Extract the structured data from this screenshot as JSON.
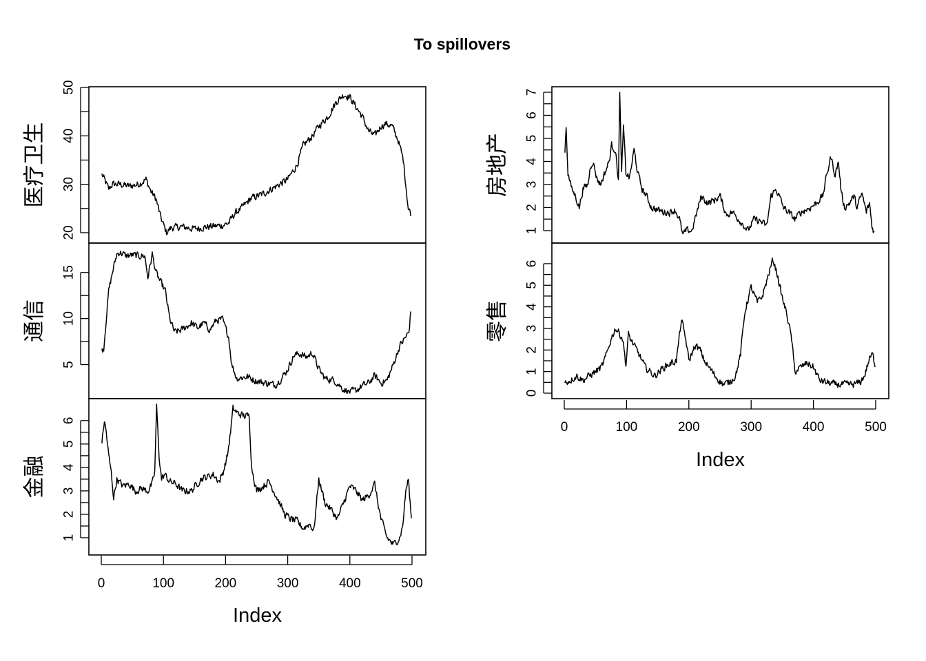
{
  "chart_data": {
    "type": "line",
    "title": "To spillovers",
    "xlabel": "Index",
    "xlim": [
      0,
      500
    ],
    "xticks": [
      0,
      100,
      200,
      300,
      400,
      500
    ],
    "panels": [
      {
        "name": "医疗卫生",
        "column": "left",
        "ylim": [
          19,
          49
        ],
        "yticks": [
          20,
          30,
          40,
          50
        ],
        "knots": [
          [
            1,
            32
          ],
          [
            5,
            31
          ],
          [
            12,
            29
          ],
          [
            18,
            30
          ],
          [
            30,
            30
          ],
          [
            45,
            29.6
          ],
          [
            60,
            30
          ],
          [
            72,
            31
          ],
          [
            80,
            28.5
          ],
          [
            88,
            27
          ],
          [
            96,
            23
          ],
          [
            105,
            20
          ],
          [
            112,
            21
          ],
          [
            130,
            21.2
          ],
          [
            150,
            20.8
          ],
          [
            170,
            21.2
          ],
          [
            195,
            21.5
          ],
          [
            205,
            22
          ],
          [
            215,
            24
          ],
          [
            225,
            25
          ],
          [
            240,
            27
          ],
          [
            260,
            28
          ],
          [
            280,
            29.5
          ],
          [
            300,
            31
          ],
          [
            315,
            34
          ],
          [
            325,
            38
          ],
          [
            340,
            40
          ],
          [
            350,
            42
          ],
          [
            365,
            44
          ],
          [
            378,
            47
          ],
          [
            390,
            48.5
          ],
          [
            400,
            48
          ],
          [
            410,
            46
          ],
          [
            420,
            44
          ],
          [
            430,
            41
          ],
          [
            440,
            40
          ],
          [
            450,
            42
          ],
          [
            458,
            42.5
          ],
          [
            468,
            42
          ],
          [
            478,
            39
          ],
          [
            486,
            35
          ],
          [
            490,
            30
          ],
          [
            494,
            25
          ],
          [
            498,
            24
          ]
        ]
      },
      {
        "name": "通信",
        "column": "left",
        "ylim": [
          1.9,
          17.6
        ],
        "yticks": [
          5,
          10,
          15
        ],
        "knots": [
          [
            1,
            6.5
          ],
          [
            4,
            6.8
          ],
          [
            8,
            10
          ],
          [
            12,
            13
          ],
          [
            18,
            15
          ],
          [
            25,
            17
          ],
          [
            30,
            17.2
          ],
          [
            40,
            16.8
          ],
          [
            50,
            16.9
          ],
          [
            60,
            16.8
          ],
          [
            70,
            16.8
          ],
          [
            75,
            14.5
          ],
          [
            82,
            17
          ],
          [
            88,
            15
          ],
          [
            95,
            14
          ],
          [
            103,
            13
          ],
          [
            110,
            10
          ],
          [
            118,
            8.5
          ],
          [
            130,
            8.8
          ],
          [
            145,
            9.5
          ],
          [
            155,
            9
          ],
          [
            165,
            9.5
          ],
          [
            175,
            8.8
          ],
          [
            185,
            9.8
          ],
          [
            195,
            9.9
          ],
          [
            205,
            8
          ],
          [
            210,
            5
          ],
          [
            218,
            3.5
          ],
          [
            235,
            3.7
          ],
          [
            250,
            3.2
          ],
          [
            265,
            3
          ],
          [
            280,
            2.8
          ],
          [
            290,
            3.5
          ],
          [
            300,
            4.5
          ],
          [
            310,
            6
          ],
          [
            320,
            6.2
          ],
          [
            330,
            5.8
          ],
          [
            340,
            6.3
          ],
          [
            350,
            4.5
          ],
          [
            360,
            3.5
          ],
          [
            375,
            3.3
          ],
          [
            390,
            2.3
          ],
          [
            400,
            2
          ],
          [
            410,
            2.2
          ],
          [
            420,
            2.7
          ],
          [
            430,
            3
          ],
          [
            440,
            3.8
          ],
          [
            450,
            3
          ],
          [
            460,
            3.3
          ],
          [
            470,
            5
          ],
          [
            480,
            7
          ],
          [
            490,
            8
          ],
          [
            495,
            8.5
          ],
          [
            498,
            10.8
          ]
        ]
      },
      {
        "name": "金融",
        "column": "left",
        "ylim": [
          0.5,
          6.7
        ],
        "yticks": [
          1,
          2,
          3,
          4,
          5,
          6
        ],
        "knots": [
          [
            1,
            5.1
          ],
          [
            3,
            5.5
          ],
          [
            5,
            6
          ],
          [
            8,
            5.5
          ],
          [
            12,
            4.5
          ],
          [
            16,
            3.8
          ],
          [
            20,
            2.7
          ],
          [
            25,
            3.5
          ],
          [
            35,
            3.2
          ],
          [
            45,
            3.3
          ],
          [
            55,
            3
          ],
          [
            65,
            3.1
          ],
          [
            75,
            3
          ],
          [
            82,
            3.3
          ],
          [
            86,
            3.8
          ],
          [
            89,
            6.6
          ],
          [
            93,
            4.5
          ],
          [
            97,
            3.5
          ],
          [
            102,
            3.7
          ],
          [
            110,
            3.4
          ],
          [
            120,
            3.3
          ],
          [
            130,
            3
          ],
          [
            145,
            3
          ],
          [
            160,
            3.5
          ],
          [
            170,
            3.6
          ],
          [
            180,
            3.7
          ],
          [
            190,
            3.4
          ],
          [
            196,
            3.8
          ],
          [
            203,
            4.5
          ],
          [
            208,
            5.5
          ],
          [
            212,
            6.5
          ],
          [
            220,
            6.3
          ],
          [
            230,
            6.2
          ],
          [
            238,
            6.2
          ],
          [
            242,
            4
          ],
          [
            250,
            3
          ],
          [
            260,
            3.2
          ],
          [
            270,
            3.4
          ],
          [
            285,
            2.6
          ],
          [
            295,
            2
          ],
          [
            305,
            1.8
          ],
          [
            315,
            1.7
          ],
          [
            325,
            1.4
          ],
          [
            335,
            1.6
          ],
          [
            342,
            1.3
          ],
          [
            350,
            3.5
          ],
          [
            360,
            2.5
          ],
          [
            370,
            2.2
          ],
          [
            380,
            1.8
          ],
          [
            390,
            2.5
          ],
          [
            400,
            3.2
          ],
          [
            410,
            3
          ],
          [
            420,
            2.6
          ],
          [
            430,
            2.8
          ],
          [
            440,
            3.3
          ],
          [
            445,
            2.5
          ],
          [
            450,
            1.8
          ],
          [
            460,
            1
          ],
          [
            470,
            0.7
          ],
          [
            480,
            1
          ],
          [
            485,
            1.5
          ],
          [
            490,
            3
          ],
          [
            494,
            3.5
          ],
          [
            497,
            2.5
          ],
          [
            499,
            1.8
          ]
        ]
      },
      {
        "name": "房地产",
        "column": "right",
        "ylim": [
          0.7,
          7.0
        ],
        "yticks": [
          1,
          2,
          3,
          4,
          5,
          6,
          7
        ],
        "knots": [
          [
            1,
            4.5
          ],
          [
            3,
            5.5
          ],
          [
            6,
            3.5
          ],
          [
            12,
            2.8
          ],
          [
            18,
            2.5
          ],
          [
            24,
            2
          ],
          [
            30,
            2.8
          ],
          [
            38,
            3
          ],
          [
            42,
            3.8
          ],
          [
            46,
            4
          ],
          [
            52,
            3.3
          ],
          [
            58,
            3
          ],
          [
            65,
            3.5
          ],
          [
            72,
            4
          ],
          [
            76,
            4.7
          ],
          [
            82,
            4.5
          ],
          [
            87,
            3.2
          ],
          [
            89,
            7
          ],
          [
            92,
            3.5
          ],
          [
            95,
            5.5
          ],
          [
            99,
            3.5
          ],
          [
            105,
            3.3
          ],
          [
            112,
            4.5
          ],
          [
            118,
            3.5
          ],
          [
            125,
            2.8
          ],
          [
            132,
            2.5
          ],
          [
            140,
            2
          ],
          [
            150,
            1.9
          ],
          [
            160,
            1.8
          ],
          [
            170,
            1.8
          ],
          [
            178,
            1.9
          ],
          [
            185,
            1.5
          ],
          [
            190,
            0.8
          ],
          [
            196,
            1
          ],
          [
            205,
            1
          ],
          [
            210,
            1.5
          ],
          [
            220,
            2.5
          ],
          [
            230,
            2.2
          ],
          [
            240,
            2.3
          ],
          [
            250,
            2.5
          ],
          [
            260,
            1.7
          ],
          [
            270,
            1.8
          ],
          [
            280,
            1.5
          ],
          [
            295,
            1
          ],
          [
            305,
            1.5
          ],
          [
            315,
            1.4
          ],
          [
            325,
            1.2
          ],
          [
            332,
            2.5
          ],
          [
            340,
            2.8
          ],
          [
            345,
            2.5
          ],
          [
            352,
            2
          ],
          [
            360,
            1.8
          ],
          [
            370,
            1.5
          ],
          [
            380,
            1.8
          ],
          [
            395,
            2
          ],
          [
            405,
            2.2
          ],
          [
            415,
            2.5
          ],
          [
            422,
            3.5
          ],
          [
            428,
            4.2
          ],
          [
            435,
            3.4
          ],
          [
            440,
            4
          ],
          [
            445,
            2.6
          ],
          [
            450,
            2
          ],
          [
            458,
            2.2
          ],
          [
            465,
            2.5
          ],
          [
            470,
            2
          ],
          [
            478,
            2.6
          ],
          [
            485,
            1.8
          ],
          [
            490,
            2.2
          ],
          [
            494,
            1.2
          ],
          [
            498,
            0.9
          ]
        ]
      },
      {
        "name": "零售",
        "column": "right",
        "ylim": [
          0,
          6.7
        ],
        "yticks": [
          0,
          1,
          2,
          3,
          4,
          5,
          6
        ],
        "knots": [
          [
            1,
            0.5
          ],
          [
            10,
            0.6
          ],
          [
            20,
            0.8
          ],
          [
            30,
            0.6
          ],
          [
            40,
            0.8
          ],
          [
            50,
            1
          ],
          [
            60,
            1.2
          ],
          [
            68,
            1.8
          ],
          [
            75,
            2.5
          ],
          [
            82,
            3
          ],
          [
            88,
            2.8
          ],
          [
            94,
            2.5
          ],
          [
            99,
            1.3
          ],
          [
            103,
            2.7
          ],
          [
            112,
            2.2
          ],
          [
            120,
            1.8
          ],
          [
            130,
            1.2
          ],
          [
            145,
            0.8
          ],
          [
            160,
            1.2
          ],
          [
            172,
            1.4
          ],
          [
            180,
            1.5
          ],
          [
            188,
            3.4
          ],
          [
            195,
            2.5
          ],
          [
            200,
            1.5
          ],
          [
            210,
            2.2
          ],
          [
            218,
            2
          ],
          [
            225,
            1.5
          ],
          [
            232,
            1.2
          ],
          [
            245,
            0.7
          ],
          [
            255,
            0.4
          ],
          [
            265,
            0.5
          ],
          [
            275,
            0.8
          ],
          [
            283,
            1.8
          ],
          [
            290,
            3.8
          ],
          [
            300,
            4.9
          ],
          [
            310,
            4.2
          ],
          [
            318,
            4.5
          ],
          [
            325,
            5.2
          ],
          [
            335,
            6.2
          ],
          [
            342,
            5.5
          ],
          [
            350,
            4.4
          ],
          [
            358,
            3.6
          ],
          [
            365,
            2.5
          ],
          [
            370,
            1
          ],
          [
            380,
            1.2
          ],
          [
            390,
            1.4
          ],
          [
            400,
            1.2
          ],
          [
            410,
            0.6
          ],
          [
            420,
            0.5
          ],
          [
            435,
            0.4
          ],
          [
            450,
            0.4
          ],
          [
            465,
            0.4
          ],
          [
            475,
            0.5
          ],
          [
            482,
            0.8
          ],
          [
            490,
            1.6
          ],
          [
            495,
            1.8
          ],
          [
            499,
            1.3
          ]
        ]
      }
    ]
  }
}
